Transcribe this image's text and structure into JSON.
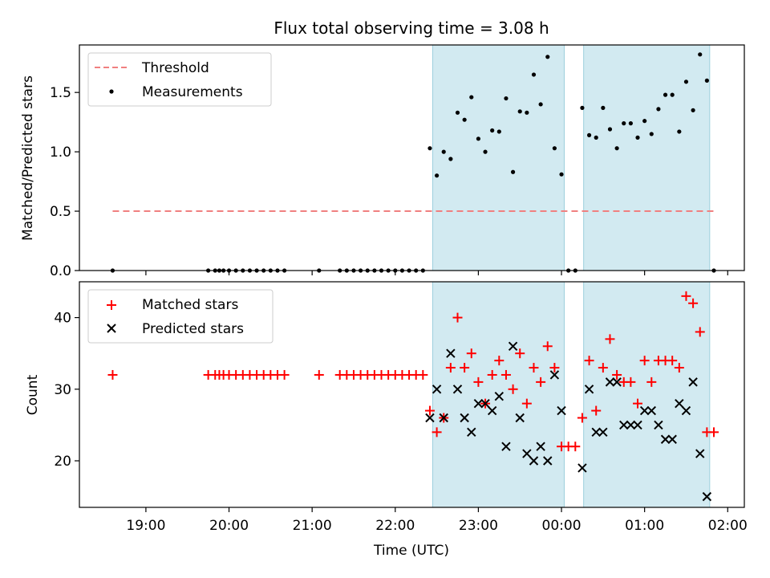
{
  "title": "Flux total observing time = 3.08 h",
  "chart_data": [
    {
      "type": "scatter",
      "panel": "top",
      "xlabel": "",
      "ylabel": "Matched/Predicted stars",
      "xlim": [
        "18:12",
        "02:12"
      ],
      "ylim": [
        0,
        1.9
      ],
      "yticks": [
        0.0,
        0.5,
        1.0,
        1.5
      ],
      "ytick_labels": [
        "0.0",
        "0.5",
        "1.0",
        "1.5"
      ],
      "grid": false,
      "legend_position": "top-left",
      "threshold": {
        "name": "Threshold",
        "value": 0.5,
        "x_start": "18:36",
        "x_end": "01:52",
        "color": "#f08080"
      },
      "shaded_intervals": [
        {
          "start": "22:27",
          "end": "00:02"
        },
        {
          "start": "00:16",
          "end": "01:47"
        }
      ],
      "series": [
        {
          "name": "Measurements",
          "color": "#000000",
          "x": [
            "18:36",
            "19:45",
            "19:50",
            "19:53",
            "19:56",
            "20:00",
            "20:05",
            "20:10",
            "20:15",
            "20:20",
            "20:25",
            "20:30",
            "20:35",
            "20:40",
            "21:05",
            "21:20",
            "21:25",
            "21:30",
            "21:35",
            "21:40",
            "21:45",
            "21:50",
            "21:55",
            "22:00",
            "22:05",
            "22:10",
            "22:15",
            "22:20",
            "22:25",
            "22:30",
            "22:35",
            "22:40",
            "22:45",
            "22:50",
            "22:55",
            "23:00",
            "23:05",
            "23:10",
            "23:15",
            "23:20",
            "23:25",
            "23:30",
            "23:35",
            "23:40",
            "23:45",
            "23:50",
            "23:55",
            "00:00",
            "00:05",
            "00:10",
            "00:15",
            "00:20",
            "00:25",
            "00:30",
            "00:35",
            "00:40",
            "00:45",
            "00:50",
            "00:55",
            "01:00",
            "01:05",
            "01:10",
            "01:15",
            "01:20",
            "01:25",
            "01:30",
            "01:35",
            "01:40",
            "01:45",
            "01:50"
          ],
          "y": [
            0,
            0,
            0,
            0,
            0,
            0,
            0,
            0,
            0,
            0,
            0,
            0,
            0,
            0,
            0,
            0,
            0,
            0,
            0,
            0,
            0,
            0,
            0,
            0,
            0,
            0,
            0,
            0,
            1.03,
            0.8,
            1.0,
            0.94,
            1.33,
            1.27,
            1.46,
            1.11,
            1.0,
            1.18,
            1.17,
            1.45,
            0.83,
            1.34,
            1.33,
            1.65,
            1.4,
            1.8,
            1.03,
            0.81,
            0,
            0,
            1.37,
            1.14,
            1.12,
            1.37,
            1.19,
            1.03,
            1.24,
            1.24,
            1.12,
            1.26,
            1.15,
            1.36,
            1.48,
            1.48,
            1.17,
            1.59,
            1.35,
            1.82,
            1.6,
            0
          ]
        }
      ]
    },
    {
      "type": "scatter",
      "panel": "bottom",
      "xlabel": "Time (UTC)",
      "ylabel": "Count",
      "xlim": [
        "18:12",
        "02:12"
      ],
      "xticks": [
        "19:00",
        "20:00",
        "21:00",
        "22:00",
        "23:00",
        "00:00",
        "01:00",
        "02:00"
      ],
      "ylim": [
        13.5,
        45
      ],
      "yticks": [
        20,
        30,
        40
      ],
      "grid": false,
      "legend_position": "top-left",
      "shaded_intervals": [
        {
          "start": "22:27",
          "end": "00:02"
        },
        {
          "start": "00:16",
          "end": "01:47"
        }
      ],
      "series": [
        {
          "name": "Matched stars",
          "marker": "plus",
          "color": "#ff0000",
          "x": [
            "18:36",
            "19:45",
            "19:50",
            "19:53",
            "19:56",
            "20:00",
            "20:05",
            "20:10",
            "20:15",
            "20:20",
            "20:25",
            "20:30",
            "20:35",
            "20:40",
            "21:05",
            "21:20",
            "21:25",
            "21:30",
            "21:35",
            "21:40",
            "21:45",
            "21:50",
            "21:55",
            "22:00",
            "22:05",
            "22:10",
            "22:15",
            "22:20",
            "22:25",
            "22:30",
            "22:35",
            "22:40",
            "22:45",
            "22:50",
            "22:55",
            "23:00",
            "23:05",
            "23:10",
            "23:15",
            "23:20",
            "23:25",
            "23:30",
            "23:35",
            "23:40",
            "23:45",
            "23:50",
            "23:55",
            "00:00",
            "00:05",
            "00:10",
            "00:15",
            "00:20",
            "00:25",
            "00:30",
            "00:35",
            "00:40",
            "00:45",
            "00:50",
            "00:55",
            "01:00",
            "01:05",
            "01:10",
            "01:15",
            "01:20",
            "01:25",
            "01:30",
            "01:35",
            "01:40",
            "01:45",
            "01:50"
          ],
          "y": [
            32,
            32,
            32,
            32,
            32,
            32,
            32,
            32,
            32,
            32,
            32,
            32,
            32,
            32,
            32,
            32,
            32,
            32,
            32,
            32,
            32,
            32,
            32,
            32,
            32,
            32,
            32,
            32,
            27,
            24,
            26,
            33,
            40,
            33,
            35,
            31,
            28,
            32,
            34,
            32,
            30,
            35,
            28,
            33,
            31,
            36,
            33,
            22,
            22,
            22,
            26,
            34,
            27,
            33,
            37,
            32,
            31,
            31,
            28,
            34,
            31,
            34,
            34,
            34,
            33,
            43,
            42,
            38,
            24,
            24
          ]
        },
        {
          "name": "Predicted stars",
          "marker": "x",
          "color": "#000000",
          "x": [
            "22:25",
            "22:30",
            "22:35",
            "22:40",
            "22:45",
            "22:50",
            "22:55",
            "23:00",
            "23:05",
            "23:10",
            "23:15",
            "23:20",
            "23:25",
            "23:30",
            "23:35",
            "23:40",
            "23:45",
            "23:50",
            "23:55",
            "00:00",
            "00:15",
            "00:20",
            "00:25",
            "00:30",
            "00:35",
            "00:40",
            "00:45",
            "00:50",
            "00:55",
            "01:00",
            "01:05",
            "01:10",
            "01:15",
            "01:20",
            "01:25",
            "01:30",
            "01:35",
            "01:40",
            "01:45"
          ],
          "y": [
            26,
            30,
            26,
            35,
            30,
            26,
            24,
            28,
            28,
            27,
            29,
            22,
            36,
            26,
            21,
            20,
            22,
            20,
            32,
            27,
            19,
            30,
            24,
            24,
            31,
            31,
            25,
            25,
            25,
            27,
            27,
            25,
            23,
            23,
            28,
            27,
            31,
            21,
            15
          ]
        }
      ]
    }
  ]
}
